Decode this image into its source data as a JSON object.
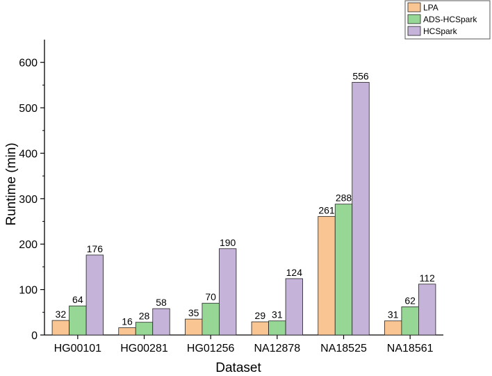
{
  "chart_data": {
    "type": "bar",
    "title": "",
    "xlabel": "Dataset",
    "ylabel": "Runtime (min)",
    "ylim": [
      0,
      650
    ],
    "yticks": [
      0,
      100,
      200,
      300,
      400,
      500,
      600
    ],
    "legend_position": "top-right",
    "categories": [
      "HG00101",
      "HG00281",
      "HG01256",
      "NA12878",
      "NA18525",
      "NA18561"
    ],
    "series": [
      {
        "name": "LPA",
        "color": "#F9C593",
        "values": [
          32,
          16,
          35,
          29,
          261,
          31
        ],
        "labels": [
          "32",
          "16",
          "35",
          "29",
          "261",
          "31"
        ]
      },
      {
        "name": "ADS-HCSpark",
        "color": "#96D796",
        "values": [
          64,
          28,
          70,
          31,
          288,
          62
        ],
        "labels": [
          "64",
          "28",
          "70",
          "31",
          "288",
          "62"
        ]
      },
      {
        "name": "HCSpark",
        "color": "#C6B3DA",
        "values": [
          176,
          58,
          190,
          124,
          556,
          112
        ],
        "labels": [
          "176",
          "58",
          "190",
          "124",
          "556",
          "112"
        ]
      }
    ]
  }
}
